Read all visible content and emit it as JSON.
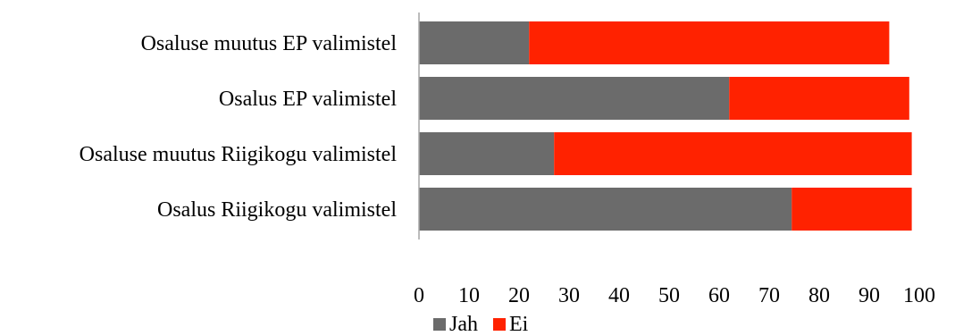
{
  "chart_data": {
    "type": "bar",
    "orientation": "horizontal",
    "stacked": true,
    "categories": [
      "Osaluse muutus EP valimistel",
      "Osalus EP valimistel",
      "Osaluse muutus Riigikogu valimistel",
      "Osalus Riigikogu valimistel"
    ],
    "series": [
      {
        "name": "Jah",
        "color": "#6b6b6b",
        "values": [
          22,
          62,
          27,
          74.5
        ]
      },
      {
        "name": "Ei",
        "color": "#ff2200",
        "values": [
          72,
          36,
          71.5,
          24
        ]
      }
    ],
    "xlim": [
      0,
      100
    ],
    "xticks": [
      0,
      10,
      20,
      30,
      40,
      50,
      60,
      70,
      80,
      90,
      100
    ],
    "xtick_labels": [
      "0",
      "10",
      "20",
      "30",
      "40",
      "50",
      "60",
      "70",
      "80",
      "90",
      "100"
    ],
    "legend": {
      "position": "bottom",
      "entries": [
        "Jah",
        "Ei"
      ]
    },
    "grid": false
  }
}
